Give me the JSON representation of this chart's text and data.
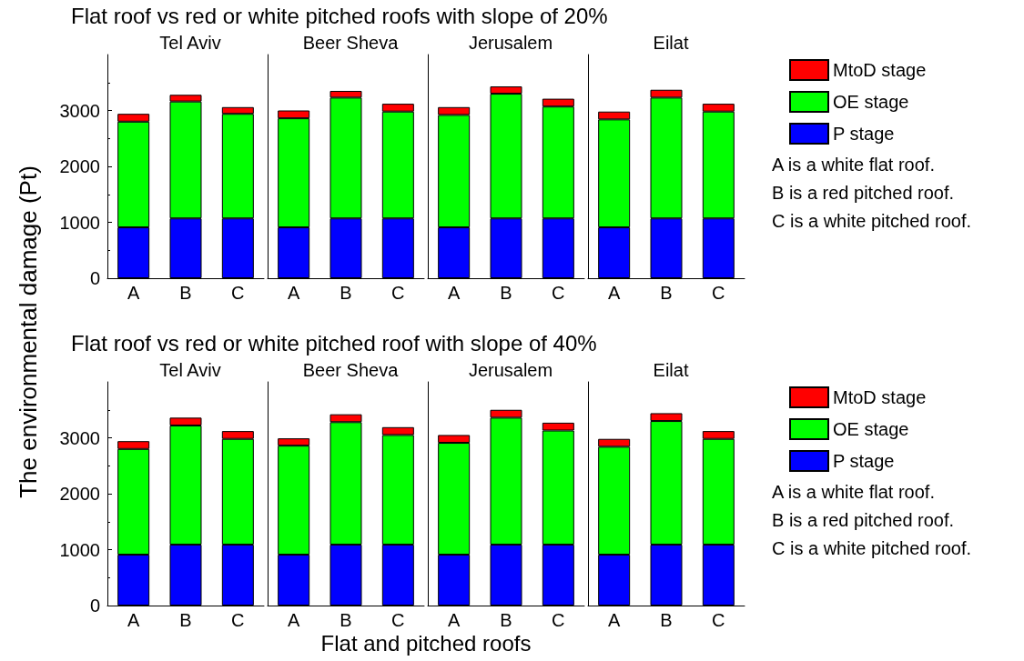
{
  "chart_data": [
    {
      "type": "bar",
      "stacked": true,
      "subtitle": "Flat roof vs red or white pitched roofs with slope of 20%",
      "ylabel": "The environmental damage (Pt)",
      "title": "Tel Aviv",
      "categories": [
        "A",
        "B",
        "C"
      ],
      "ylim": [
        0,
        4000
      ],
      "yticks": [
        0,
        1000,
        2000,
        3000
      ],
      "series": [
        {
          "color": "#0000ff",
          "values": [
            910,
            1070,
            1070
          ]
        },
        {
          "color": "#00ff00",
          "values": [
            1890,
            2090,
            1870
          ]
        },
        {
          "color": "#ff0000",
          "values": [
            140,
            120,
            120
          ]
        }
      ]
    },
    {
      "type": "bar",
      "stacked": true,
      "title": "Beer Sheva",
      "categories": [
        "A",
        "B",
        "C"
      ],
      "ylim": [
        0,
        4000
      ],
      "yticks": [
        0,
        1000,
        2000,
        3000
      ],
      "tick_labels": "x",
      "series": [
        {
          "color": "#0000ff",
          "values": [
            910,
            1070,
            1070
          ]
        },
        {
          "color": "#00ff00",
          "values": [
            1950,
            2160,
            1910
          ]
        },
        {
          "color": "#ff0000",
          "values": [
            140,
            120,
            140
          ]
        }
      ]
    },
    {
      "type": "bar",
      "stacked": true,
      "title": "Jerusalem",
      "categories": [
        "A",
        "B",
        "C"
      ],
      "ylim": [
        0,
        4000
      ],
      "yticks": [
        0,
        1000,
        2000,
        3000
      ],
      "tick_labels": "x",
      "series": [
        {
          "color": "#0000ff",
          "values": [
            910,
            1070,
            1070
          ]
        },
        {
          "color": "#00ff00",
          "values": [
            2010,
            2230,
            2000
          ]
        },
        {
          "color": "#ff0000",
          "values": [
            140,
            130,
            140
          ]
        }
      ]
    },
    {
      "type": "bar",
      "stacked": true,
      "title": "Eilat",
      "categories": [
        "A",
        "B",
        "C"
      ],
      "ylim": [
        0,
        4000
      ],
      "yticks": [
        0,
        1000,
        2000,
        3000
      ],
      "tick_labels": "x",
      "legend": "right",
      "annotations": [
        "A is a white flat roof.",
        "B is a red pitched roof.",
        "C is a white pitched roof."
      ],
      "series": [
        {
          "name": "P stage",
          "color": "#0000ff",
          "values": [
            910,
            1070,
            1070
          ]
        },
        {
          "name": "OE stage",
          "color": "#00ff00",
          "values": [
            1930,
            2160,
            1910
          ]
        },
        {
          "name": "MtoD stage",
          "color": "#ff0000",
          "values": [
            140,
            140,
            140
          ]
        }
      ]
    },
    {
      "type": "bar",
      "stacked": true,
      "subtitle": "Flat roof vs red or white pitched roof with slope of 40%",
      "xlabel": "Flat and pitched roofs",
      "title": "Tel Aviv",
      "categories": [
        "A",
        "B",
        "C"
      ],
      "ylim": [
        0,
        4000
      ],
      "yticks": [
        0,
        1000,
        2000,
        3000
      ],
      "series": [
        {
          "color": "#0000ff",
          "values": [
            910,
            1090,
            1090
          ]
        },
        {
          "color": "#00ff00",
          "values": [
            1890,
            2130,
            1890
          ]
        },
        {
          "color": "#ff0000",
          "values": [
            140,
            140,
            140
          ]
        }
      ]
    },
    {
      "type": "bar",
      "stacked": true,
      "title": "Beer Sheva",
      "categories": [
        "A",
        "B",
        "C"
      ],
      "ylim": [
        0,
        4000
      ],
      "yticks": [
        0,
        1000,
        2000,
        3000
      ],
      "tick_labels": "x",
      "series": [
        {
          "color": "#0000ff",
          "values": [
            910,
            1090,
            1090
          ]
        },
        {
          "color": "#00ff00",
          "values": [
            1950,
            2190,
            1960
          ]
        },
        {
          "color": "#ff0000",
          "values": [
            130,
            140,
            140
          ]
        }
      ]
    },
    {
      "type": "bar",
      "stacked": true,
      "title": "Jerusalem",
      "categories": [
        "A",
        "B",
        "C"
      ],
      "ylim": [
        0,
        4000
      ],
      "yticks": [
        0,
        1000,
        2000,
        3000
      ],
      "tick_labels": "x",
      "series": [
        {
          "color": "#0000ff",
          "values": [
            910,
            1090,
            1090
          ]
        },
        {
          "color": "#00ff00",
          "values": [
            2000,
            2270,
            2040
          ]
        },
        {
          "color": "#ff0000",
          "values": [
            140,
            140,
            140
          ]
        }
      ]
    },
    {
      "type": "bar",
      "stacked": true,
      "title": "Eilat",
      "categories": [
        "A",
        "B",
        "C"
      ],
      "ylim": [
        0,
        4000
      ],
      "yticks": [
        0,
        1000,
        2000,
        3000
      ],
      "tick_labels": "x",
      "legend": "right",
      "annotations": [
        "A is a white flat roof.",
        "B is a red pitched roof.",
        "C is a white pitched roof."
      ],
      "series": [
        {
          "name": "P stage",
          "color": "#0000ff",
          "values": [
            910,
            1090,
            1090
          ]
        },
        {
          "name": "OE stage",
          "color": "#00ff00",
          "values": [
            1930,
            2210,
            1890
          ]
        },
        {
          "name": "MtoD stage",
          "color": "#ff0000",
          "values": [
            140,
            140,
            140
          ]
        }
      ]
    }
  ]
}
